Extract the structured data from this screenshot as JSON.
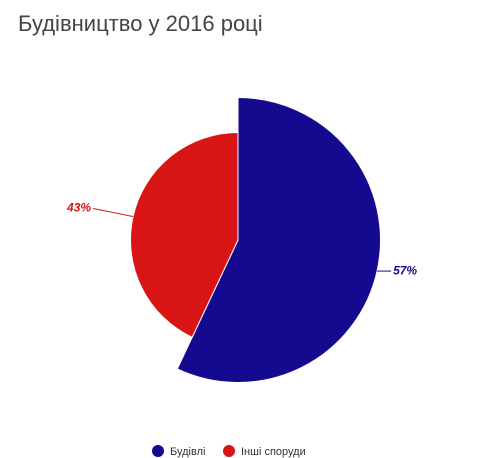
{
  "chart_data": {
    "type": "pie",
    "title": "Будівництво у 2016 році",
    "categories": [
      "Будівлі",
      "Інші споруди"
    ],
    "values": [
      57,
      43
    ],
    "value_labels": [
      "57%",
      "43%"
    ],
    "colors": [
      "#150a8f",
      "#d81414"
    ],
    "legend": "bottom"
  }
}
